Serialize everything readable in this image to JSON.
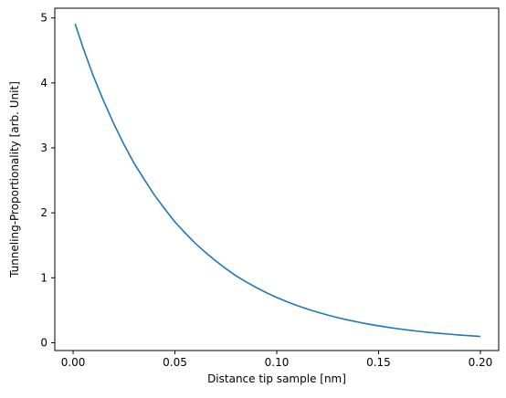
{
  "chart_data": {
    "type": "line",
    "title": "",
    "xlabel": "Distance tip sample [nm]",
    "ylabel": "Tunneling-Proportionality [arb. Unit]",
    "xlim": [
      -0.009,
      0.209
    ],
    "ylim": [
      -0.12,
      5.15
    ],
    "xticks": [
      0.0,
      0.05,
      0.1,
      0.15,
      0.2
    ],
    "xtick_labels": [
      "0.00",
      "0.05",
      "0.10",
      "0.15",
      "0.20"
    ],
    "yticks": [
      0,
      1,
      2,
      3,
      4,
      5
    ],
    "ytick_labels": [
      "0",
      "1",
      "2",
      "3",
      "4",
      "5"
    ],
    "grid": false,
    "series": [
      {
        "color": "#1f77b4",
        "x": [
          0.001,
          0.005,
          0.01,
          0.015,
          0.02,
          0.025,
          0.03,
          0.035,
          0.04,
          0.045,
          0.05,
          0.055,
          0.06,
          0.065,
          0.07,
          0.075,
          0.08,
          0.085,
          0.09,
          0.095,
          0.1,
          0.105,
          0.11,
          0.115,
          0.12,
          0.125,
          0.13,
          0.135,
          0.14,
          0.145,
          0.15,
          0.155,
          0.16,
          0.165,
          0.17,
          0.175,
          0.18,
          0.185,
          0.19,
          0.195,
          0.2
        ],
        "y": [
          4.91,
          4.53,
          4.1,
          3.72,
          3.37,
          3.05,
          2.76,
          2.51,
          2.27,
          2.06,
          1.86,
          1.69,
          1.53,
          1.39,
          1.26,
          1.14,
          1.03,
          0.937,
          0.849,
          0.769,
          0.697,
          0.632,
          0.572,
          0.519,
          0.47,
          0.426,
          0.386,
          0.35,
          0.317,
          0.287,
          0.26,
          0.236,
          0.214,
          0.194,
          0.175,
          0.159,
          0.144,
          0.131,
          0.118,
          0.107,
          0.097
        ]
      }
    ]
  }
}
